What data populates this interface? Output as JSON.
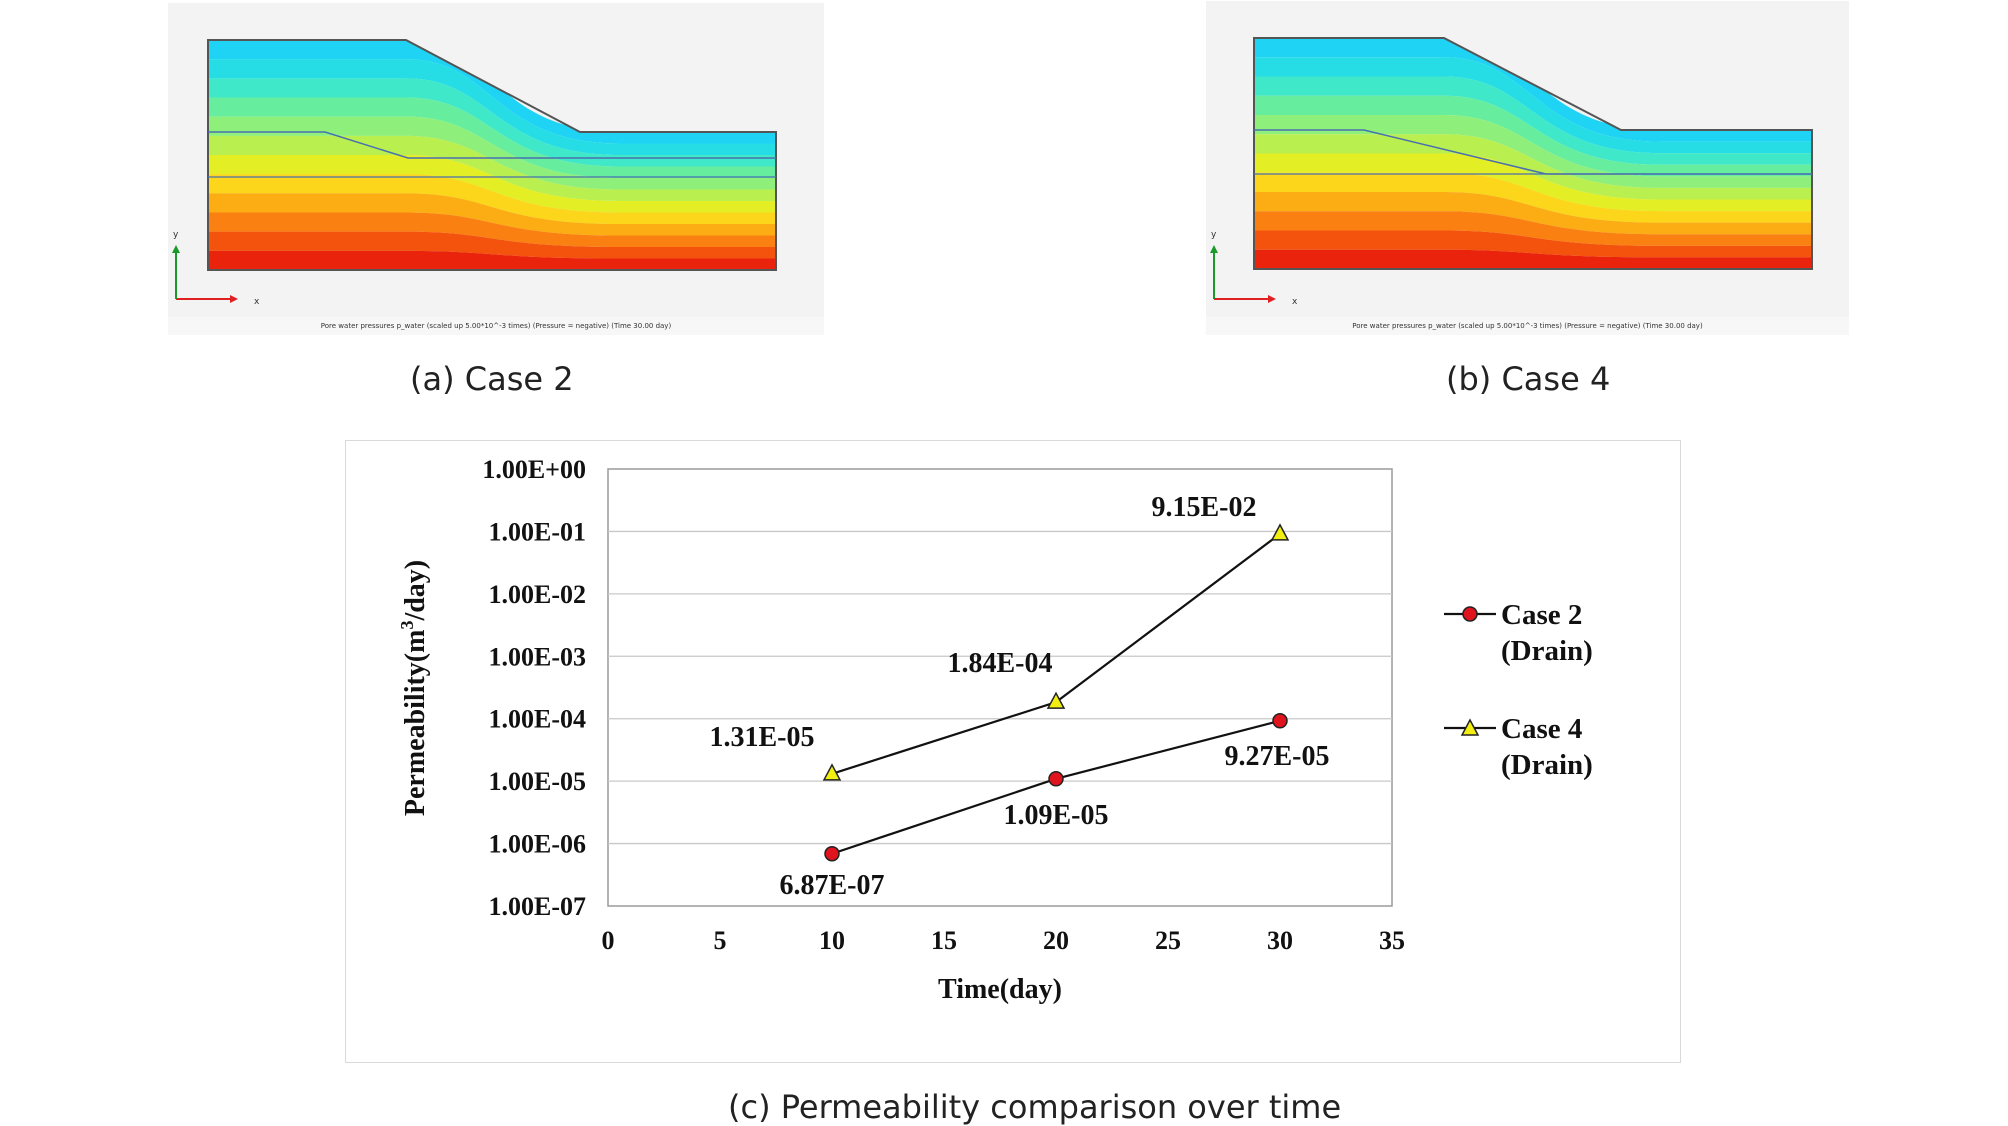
{
  "panels": [
    {
      "id": "a",
      "caption": "(a) Case 2",
      "footer": "Pore water pressures p_water (scaled up 5.00*10^-3 times) (Pressure = negative) (Time 30.00 day)",
      "axis_x": "x",
      "axis_y": "y"
    },
    {
      "id": "b",
      "caption": "(b) Case 4",
      "footer": "Pore water pressures p_water (scaled up 5.00*10^-3 times) (Pressure = negative) (Time 30.00 day)",
      "axis_x": "x",
      "axis_y": "y"
    }
  ],
  "contour_colors": [
    "#1fd3f5",
    "#26dde6",
    "#3fe8c8",
    "#66ee9e",
    "#8ef07a",
    "#b9f04f",
    "#e4ee25",
    "#fbd61a",
    "#fcad14",
    "#fa8111",
    "#f4530e",
    "#ea230c"
  ],
  "chart_caption": "(c) Permeability comparison over time",
  "chart_data": {
    "type": "line",
    "xlabel": "Time(day)",
    "ylabel_main": "Permeability(m",
    "ylabel_sup": "3",
    "ylabel_tail": "/day)",
    "x_ticks": [
      "0",
      "5",
      "10",
      "15",
      "20",
      "25",
      "30",
      "35"
    ],
    "xlim": [
      0,
      35
    ],
    "y_scale": "log",
    "ylim": [
      1e-07,
      1
    ],
    "y_ticks": [
      "1.00E-07",
      "1.00E-06",
      "1.00E-05",
      "1.00E-04",
      "1.00E-03",
      "1.00E-02",
      "1.00E-01",
      "1.00E+00"
    ],
    "grid": "horizontal",
    "legend_position": "right",
    "series": [
      {
        "name_line1": "Case 2",
        "name_line2": "(Drain)",
        "marker": "circle",
        "color": "#e0141e",
        "x": [
          10,
          20,
          30
        ],
        "y": [
          6.87e-07,
          1.09e-05,
          9.27e-05
        ],
        "labels": [
          "6.87E-07",
          "1.09E-05",
          "9.27E-05"
        ]
      },
      {
        "name_line1": "Case 4",
        "name_line2": "(Drain)",
        "marker": "triangle",
        "color": "#f2ee12",
        "x": [
          10,
          20,
          30
        ],
        "y": [
          1.31e-05,
          0.000184,
          0.0915
        ],
        "labels": [
          "1.31E-05",
          "1.84E-04",
          "9.15E-02"
        ]
      }
    ]
  }
}
